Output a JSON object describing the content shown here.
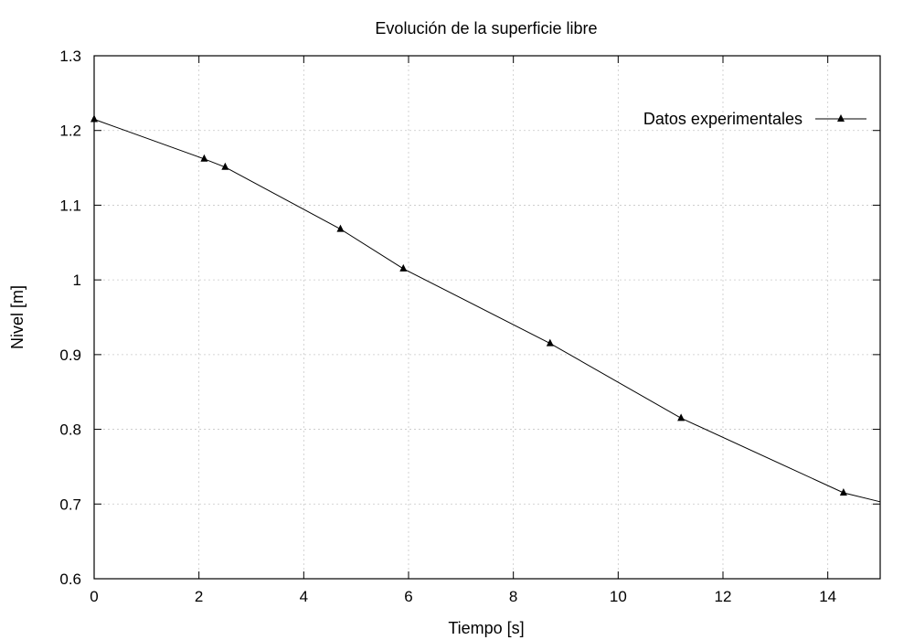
{
  "chart_data": {
    "type": "line",
    "title": "Evolución de la superficie libre",
    "xlabel": "Tiempo [s]",
    "ylabel": "Nivel [m]",
    "xlim": [
      0,
      15
    ],
    "ylim": [
      0.6,
      1.3
    ],
    "x_ticks": [
      0,
      2,
      4,
      6,
      8,
      10,
      12,
      14
    ],
    "y_ticks": [
      0.6,
      0.7,
      0.8,
      0.9,
      1.0,
      1.1,
      1.2,
      1.3
    ],
    "x_tick_labels": [
      "0",
      "2",
      "4",
      "6",
      "8",
      "10",
      "12",
      "14"
    ],
    "y_tick_labels": [
      "0.6",
      "0.7",
      "0.8",
      "0.9",
      "1",
      "1.1",
      "1.2",
      "1.3"
    ],
    "grid": true,
    "legend_position": "top-right",
    "series": [
      {
        "name": "Datos experimentales",
        "color": "#000000",
        "marker": "triangle",
        "x": [
          0,
          2.1,
          2.5,
          4.7,
          5.9,
          8.7,
          11.2,
          14.3,
          15.0
        ],
        "y": [
          1.215,
          1.162,
          1.151,
          1.068,
          1.015,
          0.915,
          0.815,
          0.715,
          0.703
        ],
        "markers_shown": [
          true,
          true,
          true,
          true,
          true,
          true,
          true,
          true,
          false
        ]
      }
    ]
  }
}
